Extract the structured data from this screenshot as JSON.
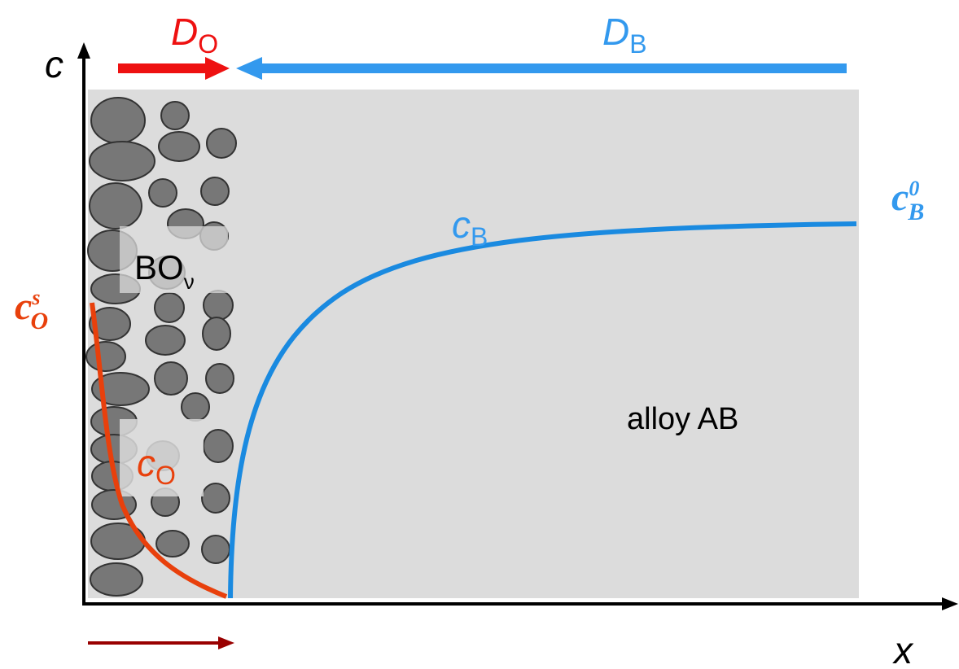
{
  "axes": {
    "y": "c",
    "x": "x"
  },
  "arrows": {
    "oxygen_flux": {
      "symbol": "D",
      "subscript": "O"
    },
    "boron_flux": {
      "symbol": "D",
      "subscript": "B"
    }
  },
  "oxide": {
    "formula": "BO",
    "subscript": "ν"
  },
  "curves": {
    "oxygen": {
      "symbol": "c",
      "subscript": "O",
      "surface": {
        "symbol": "c",
        "superscript": "s",
        "subscript": "O"
      }
    },
    "boron": {
      "symbol": "c",
      "subscript": "B",
      "bulk": {
        "symbol": "c",
        "superscript": "0",
        "subscript": "B"
      }
    }
  },
  "region": "alloy AB"
}
